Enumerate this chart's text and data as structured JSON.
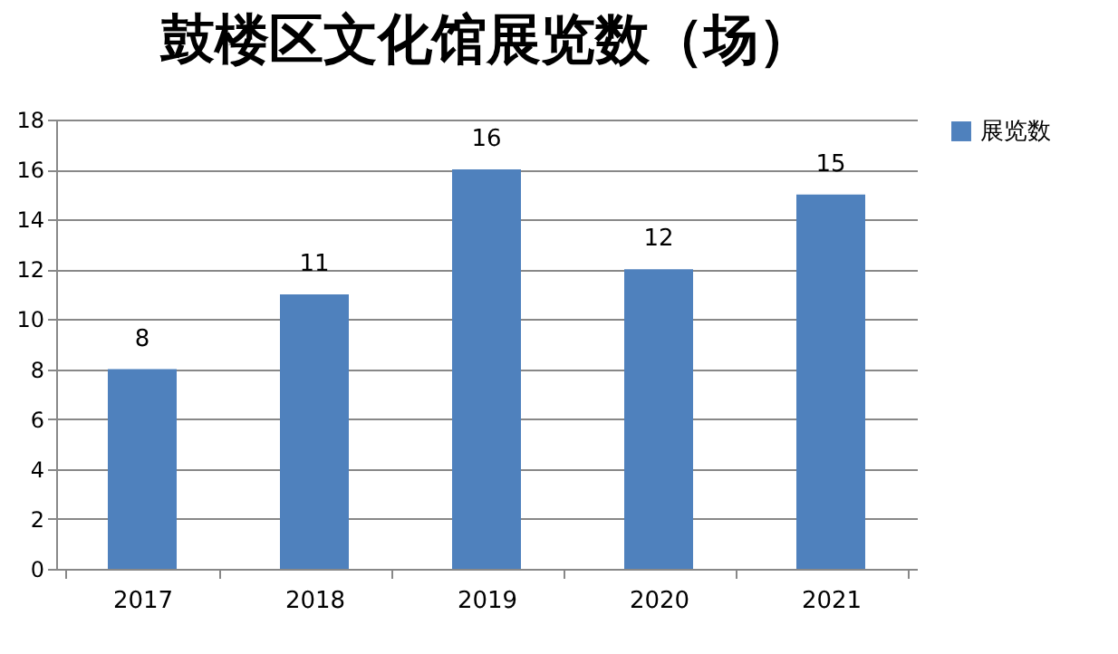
{
  "chart_data": {
    "type": "bar",
    "title": "鼓楼区文化馆展览数（场）",
    "categories": [
      "2017",
      "2018",
      "2019",
      "2020",
      "2021"
    ],
    "series": [
      {
        "name": "展览数",
        "color": "#4f81bd",
        "values": [
          8,
          11,
          16,
          12,
          15
        ]
      }
    ],
    "ylim": [
      0,
      18
    ],
    "yticks": [
      0,
      2,
      4,
      6,
      8,
      10,
      12,
      14,
      16,
      18
    ],
    "grid": "y",
    "legend": "right",
    "data_labels": true
  }
}
